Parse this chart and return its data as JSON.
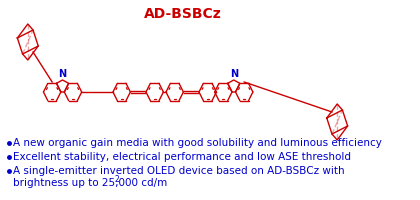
{
  "title": "AD-BSBCz",
  "title_color": "#cc0000",
  "title_fontsize": 10,
  "bullet_color": "#0000cc",
  "bullet_fontsize": 7.5,
  "bullet1": "A new organic gain media with good solubility and luminous efficiency",
  "bullet2": "Excellent stability, electrical performance and low ASE threshold",
  "bullet3a": "A single-emitter inverted OLED device based on AD-BSBCz with",
  "bullet3b": "brightness up to 25,000 cd/m",
  "bullet3b_sup": "2",
  "background_color": "#ffffff",
  "struct_color": "#cc0000",
  "n_color": "#0000cc"
}
